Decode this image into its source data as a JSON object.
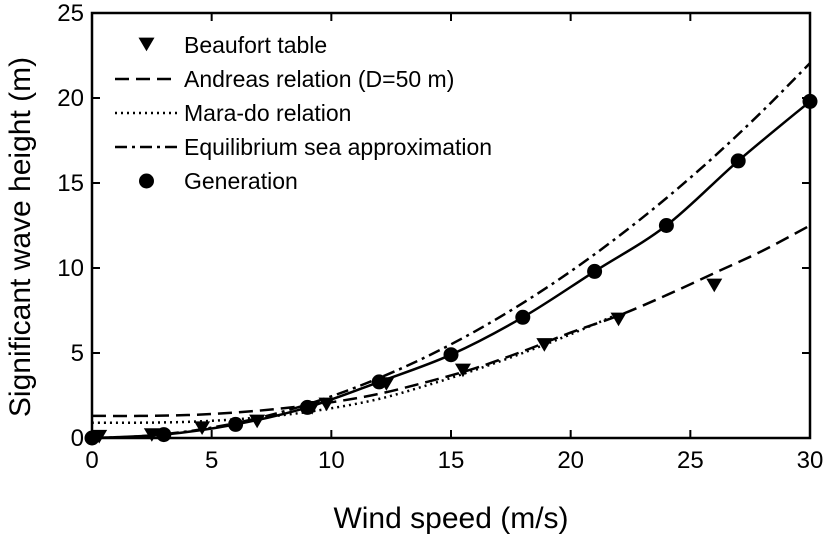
{
  "chart_data": {
    "type": "line",
    "xlabel": "Wind speed (m/s)",
    "ylabel": "Significant wave height (m)",
    "xlim": [
      0,
      30
    ],
    "ylim": [
      0,
      25
    ],
    "xticks": [
      0,
      5,
      10,
      15,
      20,
      25,
      30
    ],
    "yticks": [
      0,
      5,
      10,
      15,
      20,
      25
    ],
    "grid": false,
    "legend_position": "top-left",
    "series": [
      {
        "name": "Beaufort table",
        "style": "markers",
        "marker": "triangle-down",
        "x": [
          0.3,
          2.5,
          4.6,
          6.9,
          9.2,
          9.8,
          12.3,
          15.5,
          18.9,
          22.0,
          26.0
        ],
        "y": [
          0.1,
          0.2,
          0.6,
          1.0,
          1.8,
          2.0,
          3.2,
          4.0,
          5.5,
          7.0,
          9.0
        ]
      },
      {
        "name": "Andreas relation (D=50 m)",
        "style": "dashed",
        "x": [
          0,
          2,
          4,
          6,
          8,
          10,
          12,
          14,
          16,
          18,
          20,
          22,
          24,
          26,
          28,
          30
        ],
        "y": [
          1.3,
          1.3,
          1.35,
          1.5,
          1.75,
          2.1,
          2.6,
          3.3,
          4.1,
          5.1,
          6.2,
          7.2,
          8.4,
          9.7,
          11.0,
          12.5
        ]
      },
      {
        "name": "Mara-do relation",
        "style": "dotted",
        "x": [
          0,
          2,
          4,
          6,
          8,
          10,
          12,
          14,
          16,
          18,
          20,
          22
        ],
        "y": [
          0.9,
          0.9,
          0.95,
          1.1,
          1.35,
          1.75,
          2.3,
          3.1,
          4.0,
          5.0,
          6.1,
          7.3
        ]
      },
      {
        "name": "Equilibrium sea approximation",
        "style": "dashdot",
        "x": [
          0,
          2,
          4,
          6,
          8,
          10,
          12,
          14,
          16,
          18,
          20,
          22,
          24,
          26,
          28,
          30
        ],
        "y": [
          0.0,
          0.1,
          0.39,
          0.88,
          1.56,
          2.45,
          3.53,
          4.8,
          6.27,
          7.94,
          9.8,
          11.86,
          14.11,
          16.56,
          19.21,
          22.05
        ]
      },
      {
        "name": "Generation",
        "style": "solid-with-markers",
        "marker": "circle",
        "x": [
          0,
          3,
          6,
          9,
          12,
          15,
          18,
          21,
          24,
          27,
          30
        ],
        "y": [
          0.0,
          0.2,
          0.8,
          1.8,
          3.3,
          4.9,
          7.1,
          9.8,
          12.5,
          16.3,
          19.8
        ]
      }
    ]
  }
}
